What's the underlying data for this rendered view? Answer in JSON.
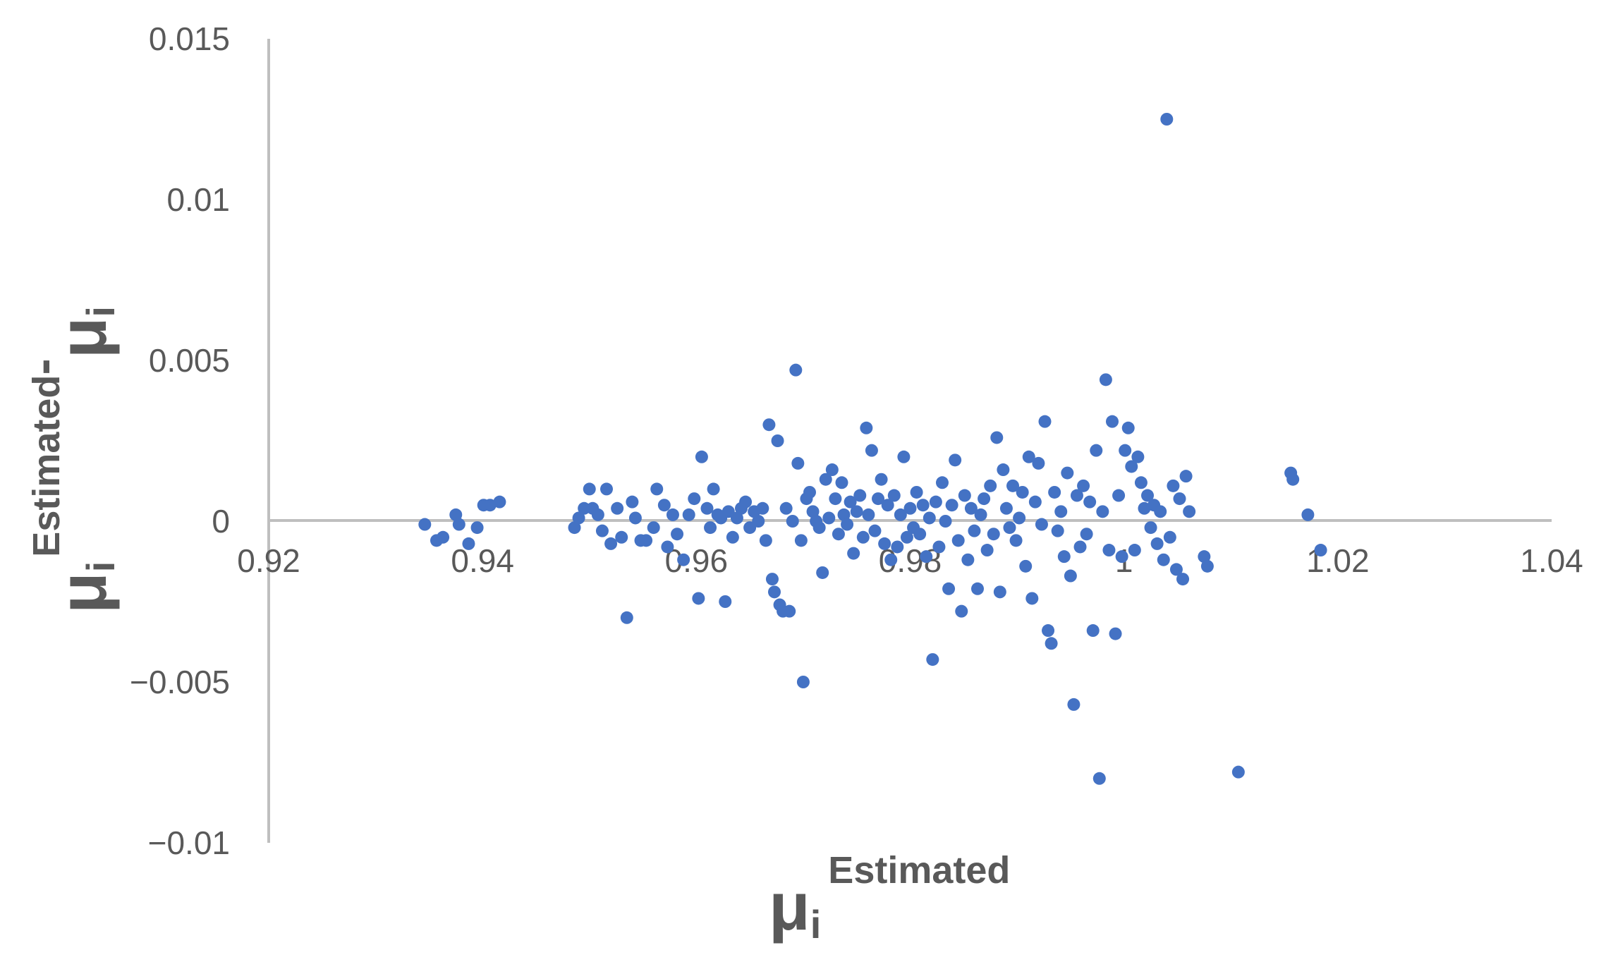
{
  "chart_data": {
    "type": "scatter",
    "title": "",
    "xlabel": {
      "base": "μ",
      "sub": "i",
      "sup": "Estimated"
    },
    "ylabel": {
      "base": "μ",
      "sub": "i",
      "sup": "Estimated",
      "minus": "-",
      "base2": "μ",
      "sub2": "i"
    },
    "xlim": [
      0.92,
      1.04
    ],
    "ylim": [
      -0.01,
      0.015
    ],
    "x_ticks": [
      "0.92",
      "0.94",
      "0.96",
      "0.98",
      "1",
      "1.02",
      "1.04"
    ],
    "y_ticks": [
      "0.015",
      "0.01",
      "0.005",
      "0",
      "−0.005",
      "−0.01"
    ],
    "grid": false,
    "legend": "none",
    "marker_color": "#4472C4",
    "axis_color": "#BFBFBF",
    "text_color": "#595959",
    "series": [
      {
        "values": [
          [
            0.9346,
            -0.0001
          ],
          [
            0.9357,
            -0.0006
          ],
          [
            0.9363,
            -0.0005
          ],
          [
            0.9375,
            0.0002
          ],
          [
            0.9378,
            -0.0001
          ],
          [
            0.9387,
            -0.0007
          ],
          [
            0.9395,
            -0.0002
          ],
          [
            0.9401,
            0.0005
          ],
          [
            0.9407,
            0.0005
          ],
          [
            0.9416,
            0.0006
          ],
          [
            0.9486,
            -0.0002
          ],
          [
            0.949,
            0.0001
          ],
          [
            0.9495,
            0.0004
          ],
          [
            0.95,
            0.001
          ],
          [
            0.9503,
            0.0004
          ],
          [
            0.9508,
            0.0002
          ],
          [
            0.9512,
            -0.0003
          ],
          [
            0.9516,
            0.001
          ],
          [
            0.952,
            -0.0007
          ],
          [
            0.9526,
            0.0004
          ],
          [
            0.953,
            -0.0005
          ],
          [
            0.9535,
            -0.003
          ],
          [
            0.954,
            0.0006
          ],
          [
            0.9543,
            0.0001
          ],
          [
            0.9548,
            -0.0006
          ],
          [
            0.9553,
            -0.0006
          ],
          [
            0.956,
            -0.0002
          ],
          [
            0.9563,
            0.001
          ],
          [
            0.957,
            0.0005
          ],
          [
            0.9573,
            -0.0008
          ],
          [
            0.9578,
            0.0002
          ],
          [
            0.9582,
            -0.0004
          ],
          [
            0.9588,
            -0.0012
          ],
          [
            0.9593,
            0.0002
          ],
          [
            0.9598,
            0.0007
          ],
          [
            0.9602,
            -0.0024
          ],
          [
            0.9605,
            0.002
          ],
          [
            0.961,
            0.0004
          ],
          [
            0.9613,
            -0.0002
          ],
          [
            0.9616,
            0.001
          ],
          [
            0.962,
            0.0002
          ],
          [
            0.9623,
            0.0001
          ],
          [
            0.9627,
            -0.0025
          ],
          [
            0.963,
            0.0003
          ],
          [
            0.9634,
            -0.0005
          ],
          [
            0.9638,
            0.0001
          ],
          [
            0.9642,
            0.0004
          ],
          [
            0.9646,
            0.0006
          ],
          [
            0.965,
            -0.0002
          ],
          [
            0.9654,
            0.0003
          ],
          [
            0.9658,
            0.0
          ],
          [
            0.9662,
            0.0004
          ],
          [
            0.9665,
            -0.0006
          ],
          [
            0.9668,
            0.003
          ],
          [
            0.9671,
            -0.0018
          ],
          [
            0.9673,
            -0.0022
          ],
          [
            0.9676,
            0.0025
          ],
          [
            0.9678,
            -0.0026
          ],
          [
            0.9681,
            -0.0028
          ],
          [
            0.9684,
            0.0004
          ],
          [
            0.9687,
            -0.0028
          ],
          [
            0.969,
            0.0
          ],
          [
            0.9693,
            0.0047
          ],
          [
            0.9695,
            0.0018
          ],
          [
            0.9698,
            -0.0006
          ],
          [
            0.97,
            -0.005
          ],
          [
            0.9703,
            0.0007
          ],
          [
            0.9706,
            0.0009
          ],
          [
            0.9709,
            0.0003
          ],
          [
            0.9712,
            0.0
          ],
          [
            0.9715,
            -0.0002
          ],
          [
            0.9718,
            -0.0016
          ],
          [
            0.9721,
            0.0013
          ],
          [
            0.9724,
            0.0001
          ],
          [
            0.9727,
            0.0016
          ],
          [
            0.973,
            0.0007
          ],
          [
            0.9733,
            -0.0004
          ],
          [
            0.9736,
            0.0012
          ],
          [
            0.9738,
            0.0002
          ],
          [
            0.9741,
            -0.0001
          ],
          [
            0.9744,
            0.0006
          ],
          [
            0.9747,
            -0.001
          ],
          [
            0.975,
            0.0003
          ],
          [
            0.9753,
            0.0008
          ],
          [
            0.9756,
            -0.0005
          ],
          [
            0.9759,
            0.0029
          ],
          [
            0.9761,
            0.0002
          ],
          [
            0.9764,
            0.0022
          ],
          [
            0.9767,
            -0.0003
          ],
          [
            0.977,
            0.0007
          ],
          [
            0.9773,
            0.0013
          ],
          [
            0.9776,
            -0.0007
          ],
          [
            0.9779,
            0.0005
          ],
          [
            0.9782,
            -0.0012
          ],
          [
            0.9785,
            0.0008
          ],
          [
            0.9788,
            -0.0008
          ],
          [
            0.9791,
            0.0002
          ],
          [
            0.9794,
            0.002
          ],
          [
            0.9797,
            -0.0005
          ],
          [
            0.98,
            0.0004
          ],
          [
            0.9803,
            -0.0002
          ],
          [
            0.9806,
            0.0009
          ],
          [
            0.9809,
            -0.0004
          ],
          [
            0.9812,
            0.0005
          ],
          [
            0.9815,
            -0.0011
          ],
          [
            0.9818,
            0.0001
          ],
          [
            0.9821,
            -0.0043
          ],
          [
            0.9824,
            0.0006
          ],
          [
            0.9827,
            -0.0008
          ],
          [
            0.983,
            0.0012
          ],
          [
            0.9833,
            0.0
          ],
          [
            0.9836,
            -0.0021
          ],
          [
            0.9839,
            0.0005
          ],
          [
            0.9842,
            0.0019
          ],
          [
            0.9845,
            -0.0006
          ],
          [
            0.9848,
            -0.0028
          ],
          [
            0.9851,
            0.0008
          ],
          [
            0.9854,
            -0.0012
          ],
          [
            0.9857,
            0.0004
          ],
          [
            0.986,
            -0.0003
          ],
          [
            0.9863,
            -0.0021
          ],
          [
            0.9866,
            0.0002
          ],
          [
            0.9869,
            0.0007
          ],
          [
            0.9872,
            -0.0009
          ],
          [
            0.9875,
            0.0011
          ],
          [
            0.9878,
            -0.0004
          ],
          [
            0.9881,
            0.0026
          ],
          [
            0.9884,
            -0.0022
          ],
          [
            0.9887,
            0.0016
          ],
          [
            0.989,
            0.0004
          ],
          [
            0.9893,
            -0.0002
          ],
          [
            0.9896,
            0.0011
          ],
          [
            0.9899,
            -0.0006
          ],
          [
            0.9902,
            0.0001
          ],
          [
            0.9905,
            0.0009
          ],
          [
            0.9908,
            -0.0014
          ],
          [
            0.9911,
            0.002
          ],
          [
            0.9914,
            -0.0024
          ],
          [
            0.9917,
            0.0006
          ],
          [
            0.992,
            0.0018
          ],
          [
            0.9923,
            -0.0001
          ],
          [
            0.9926,
            0.0031
          ],
          [
            0.9929,
            -0.0034
          ],
          [
            0.9932,
            -0.0038
          ],
          [
            0.9935,
            0.0009
          ],
          [
            0.9938,
            -0.0003
          ],
          [
            0.9941,
            0.0003
          ],
          [
            0.9944,
            -0.0011
          ],
          [
            0.9947,
            0.0015
          ],
          [
            0.995,
            -0.0017
          ],
          [
            0.9953,
            -0.0057
          ],
          [
            0.9956,
            0.0008
          ],
          [
            0.9959,
            -0.0008
          ],
          [
            0.9962,
            0.0011
          ],
          [
            0.9965,
            -0.0004
          ],
          [
            0.9968,
            0.0006
          ],
          [
            0.9971,
            -0.0034
          ],
          [
            0.9974,
            0.0022
          ],
          [
            0.9977,
            -0.008
          ],
          [
            0.998,
            0.0003
          ],
          [
            0.9983,
            0.0044
          ],
          [
            0.9986,
            -0.0009
          ],
          [
            0.9989,
            0.0031
          ],
          [
            0.9992,
            -0.0035
          ],
          [
            0.9995,
            0.0008
          ],
          [
            0.9998,
            -0.0011
          ],
          [
            1.0001,
            0.0022
          ],
          [
            1.0004,
            0.0029
          ],
          [
            1.0007,
            0.0017
          ],
          [
            1.001,
            -0.0009
          ],
          [
            1.0013,
            0.002
          ],
          [
            1.0016,
            0.0012
          ],
          [
            1.0019,
            0.0004
          ],
          [
            1.0022,
            0.0008
          ],
          [
            1.0025,
            -0.0002
          ],
          [
            1.0028,
            0.0005
          ],
          [
            1.0031,
            -0.0007
          ],
          [
            1.0034,
            0.0003
          ],
          [
            1.0037,
            -0.0012
          ],
          [
            1.004,
            0.0125
          ],
          [
            1.0043,
            -0.0005
          ],
          [
            1.0046,
            0.0011
          ],
          [
            1.0049,
            -0.0015
          ],
          [
            1.0052,
            0.0007
          ],
          [
            1.0055,
            -0.0018
          ],
          [
            1.0058,
            0.0014
          ],
          [
            1.0061,
            0.0003
          ],
          [
            1.0075,
            -0.0011
          ],
          [
            1.0078,
            -0.0014
          ],
          [
            1.0107,
            -0.0078
          ],
          [
            1.0156,
            0.0015
          ],
          [
            1.0158,
            0.0013
          ],
          [
            1.0172,
            0.0002
          ],
          [
            1.0184,
            -0.0009
          ]
        ]
      }
    ]
  }
}
